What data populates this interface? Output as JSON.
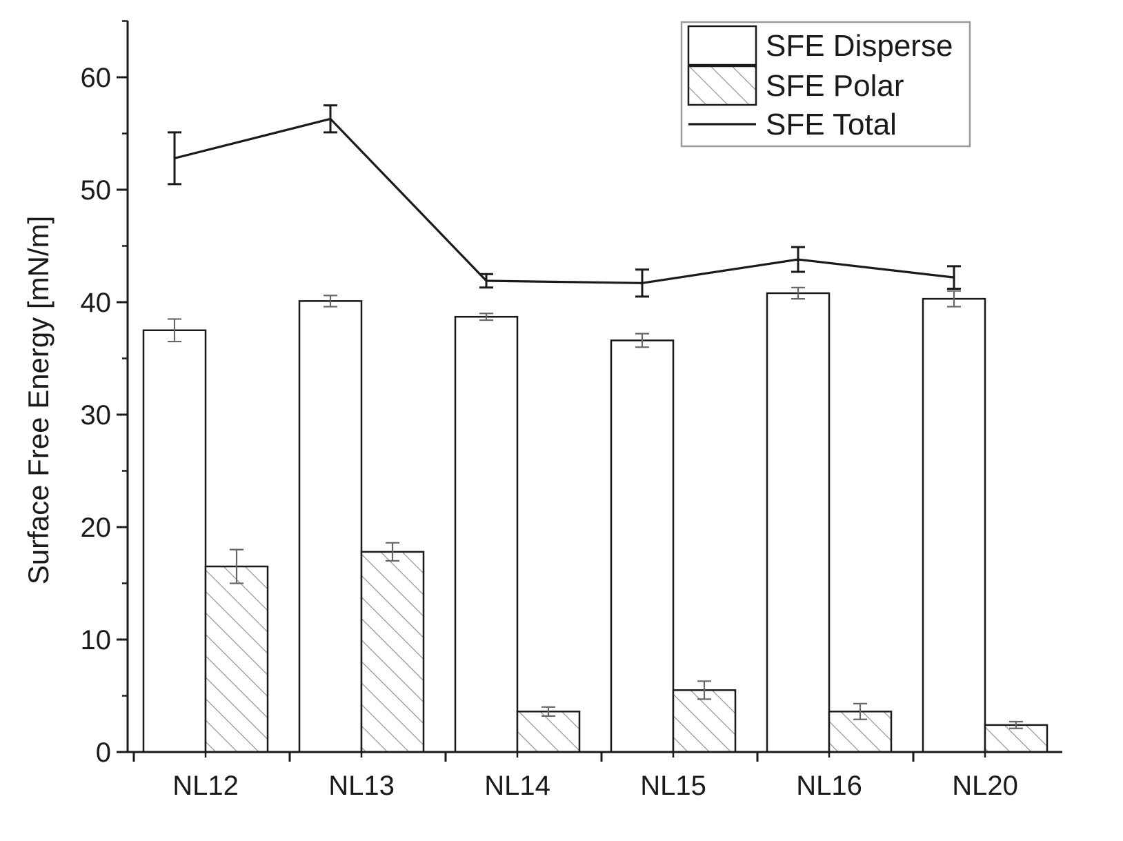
{
  "chart_data": {
    "type": "bar",
    "title": "",
    "xlabel": "",
    "ylabel": "Surface Free Energy [mN/m]",
    "ylim": [
      0,
      65
    ],
    "yticks": [
      0,
      10,
      20,
      30,
      40,
      50,
      60
    ],
    "minor_ticks": true,
    "grid": false,
    "legend_position": "top-right",
    "categories": [
      "NL12",
      "NL13",
      "NL14",
      "NL15",
      "NL16",
      "NL20"
    ],
    "series": [
      {
        "name": "SFE Disperse",
        "kind": "bar",
        "pattern": "none",
        "values": [
          37.5,
          40.1,
          38.7,
          36.6,
          40.8,
          40.3
        ],
        "errors": [
          1.0,
          0.5,
          0.3,
          0.6,
          0.5,
          0.7
        ]
      },
      {
        "name": "SFE Polar",
        "kind": "bar",
        "pattern": "hatched",
        "values": [
          16.5,
          17.8,
          3.6,
          5.5,
          3.6,
          2.4
        ],
        "errors": [
          1.5,
          0.8,
          0.4,
          0.8,
          0.7,
          0.3
        ]
      },
      {
        "name": "SFE Total",
        "kind": "line",
        "values": [
          52.8,
          56.3,
          41.9,
          41.7,
          43.8,
          42.2
        ],
        "errors": [
          2.3,
          1.2,
          0.6,
          1.2,
          1.1,
          1.0
        ]
      }
    ],
    "colors": {
      "bar_fill": "#ffffff",
      "bar_stroke": "#1a1a1a",
      "hatch": "#888888",
      "line": "#1a1a1a",
      "errorbar_bar": "#666666",
      "errorbar_line": "#1a1a1a",
      "legend_border": "#999999"
    }
  }
}
